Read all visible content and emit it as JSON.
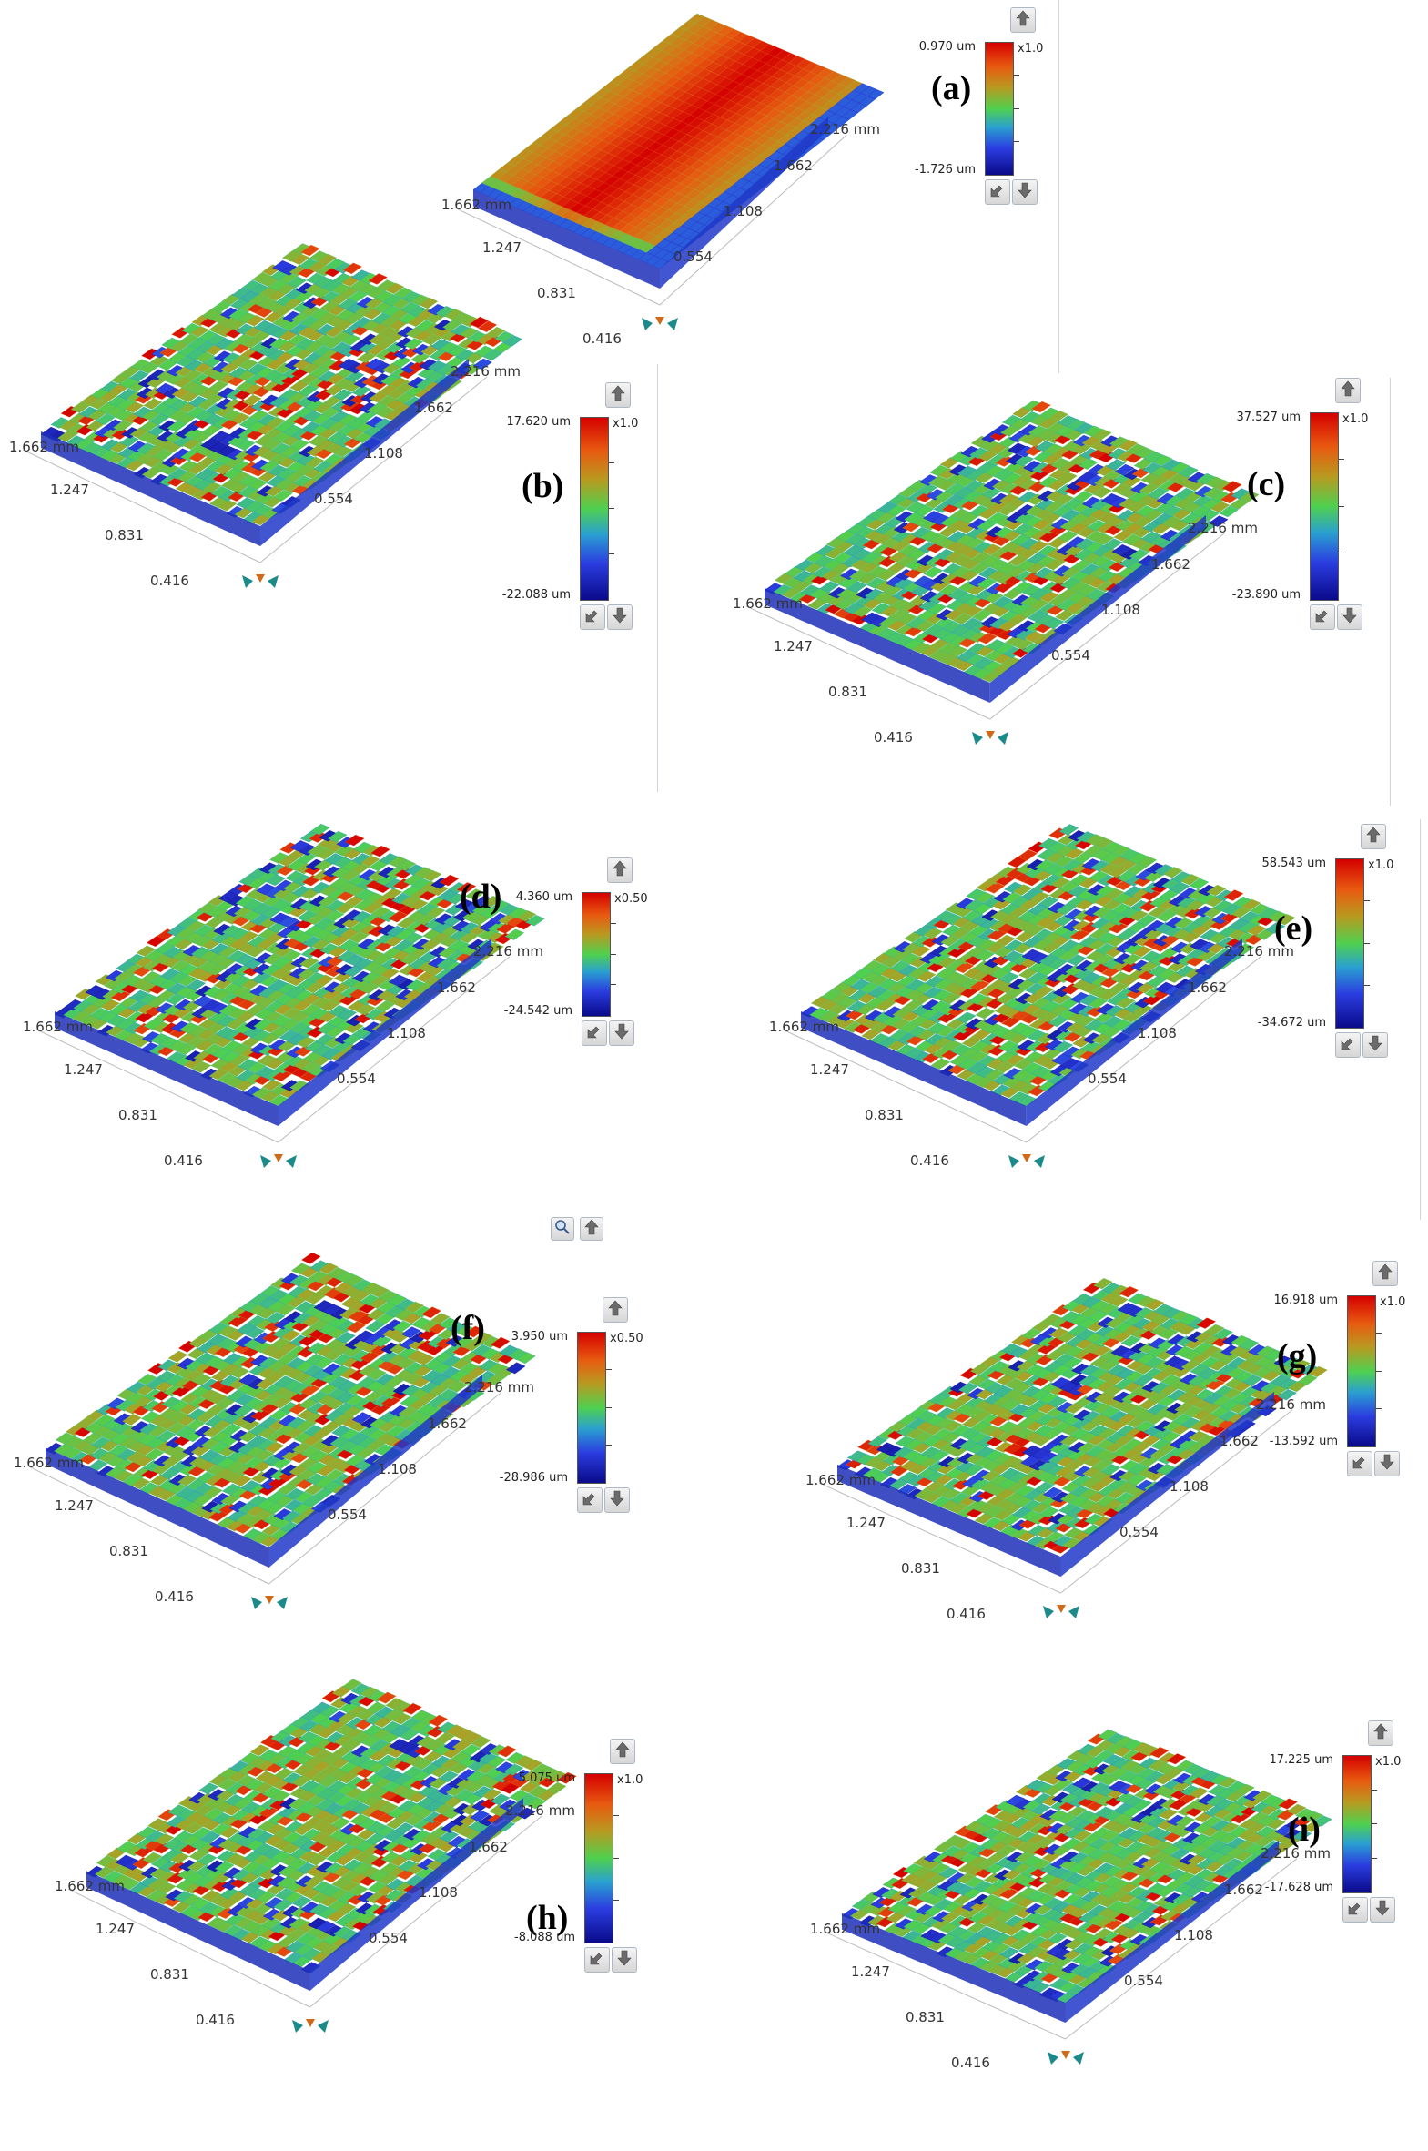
{
  "axis": {
    "y_left": "1.662 mm",
    "y_mid1": "1.247",
    "y_mid2": "0.831",
    "y_low": "0.416",
    "x_top": "2.216 mm",
    "x_hi": "1.662",
    "x_mid": "1.108",
    "x_low": "0.554"
  },
  "panels": [
    {
      "id": "a",
      "label": "(a)",
      "max": "0.970 um",
      "min": "-1.726 um",
      "scale": "x1.0"
    },
    {
      "id": "b",
      "label": "(b)",
      "max": "17.620 um",
      "min": "-22.088 um",
      "scale": "x1.0"
    },
    {
      "id": "c",
      "label": "(c)",
      "max": "37.527 um",
      "min": "-23.890 um",
      "scale": "x1.0"
    },
    {
      "id": "d",
      "label": "(d)",
      "max": "4.360 um",
      "min": "-24.542 um",
      "scale": "x0.50"
    },
    {
      "id": "e",
      "label": "(e)",
      "max": "58.543 um",
      "min": "-34.672 um",
      "scale": "x1.0"
    },
    {
      "id": "f",
      "label": "(f)",
      "max": "3.950 um",
      "min": "-28.986 um",
      "scale": "x0.50"
    },
    {
      "id": "g",
      "label": "(g)",
      "max": "16.918 um",
      "min": "-13.592 um",
      "scale": "x1.0"
    },
    {
      "id": "h",
      "label": "(h)",
      "max": "5.075 um",
      "min": "-8.088 um",
      "scale": "x1.0"
    },
    {
      "id": "i",
      "label": "(i)",
      "max": "17.225 um",
      "min": "-17.628 um",
      "scale": "x1.0"
    }
  ],
  "icons": {
    "up": "arrow-up-icon",
    "down": "arrow-down-icon",
    "rotate": "rotate-view-icon",
    "zoom": "zoom-icon",
    "orient": "orientation-arrows-icon"
  }
}
